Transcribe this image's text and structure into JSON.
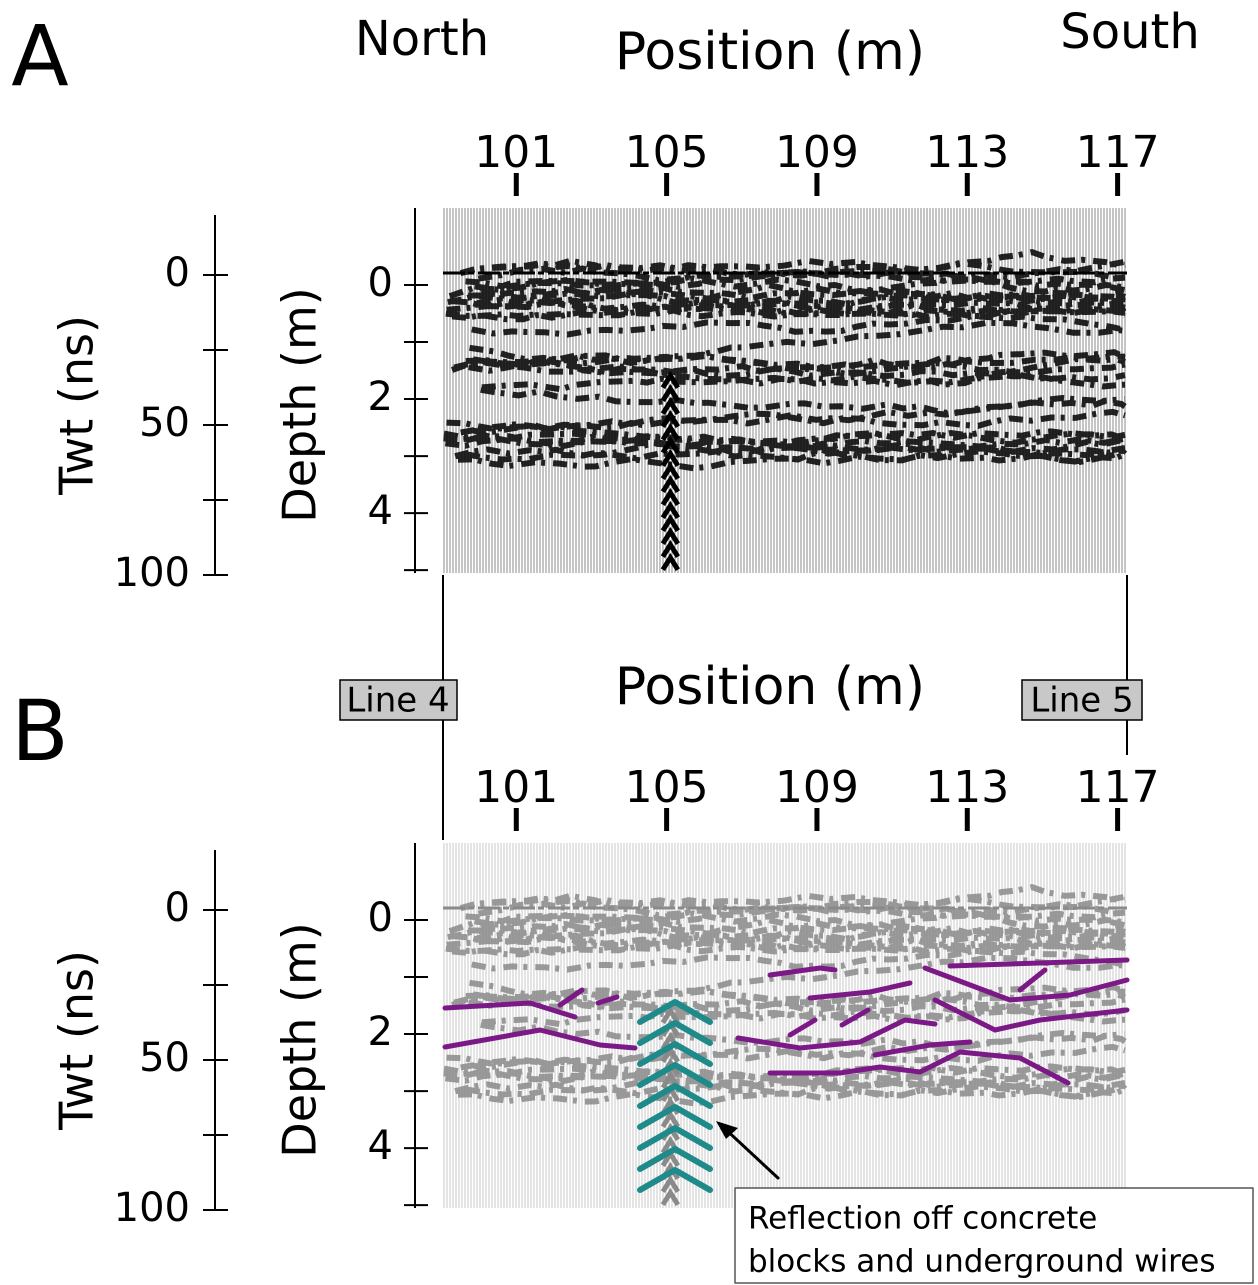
{
  "chart_data": [
    {
      "type": "radargram",
      "panel": "A",
      "x_label": "Position (m)",
      "y_label": "Depth (m)",
      "y2_label": "Twt (ns)",
      "left_label": "North",
      "right_label": "South",
      "xlim": [
        99.05,
        117.25
      ],
      "xticks": [
        101,
        105,
        109,
        113,
        117
      ],
      "ylim": [
        -1.35,
        5.05
      ],
      "yticks": [
        0,
        2,
        4
      ],
      "yminorticks": [
        1,
        3,
        5
      ],
      "y2lim": [
        -20,
        100
      ],
      "y2ticks": [
        0,
        50,
        100
      ],
      "y2minorticks": [
        25,
        75
      ],
      "color": "#000000"
    },
    {
      "type": "radargram",
      "panel": "B",
      "x_label": "Position (m)",
      "y_label": "Depth (m)",
      "y2_label": "Twt (ns)",
      "xlim": [
        99.05,
        117.25
      ],
      "xticks": [
        101,
        105,
        109,
        113,
        117
      ],
      "ylim": [
        -1.35,
        5.05
      ],
      "yticks": [
        0,
        2,
        4
      ],
      "yminorticks": [
        1,
        3,
        5
      ],
      "y2lim": [
        -20,
        100
      ],
      "y2ticks": [
        0,
        50,
        100
      ],
      "y2minorticks": [
        25,
        75
      ],
      "color": "#8a8a8a",
      "annotation": [
        "Reflection off concrete",
        "blocks and underground wires"
      ]
    }
  ],
  "links": [
    "Line 4",
    "Line 5"
  ]
}
